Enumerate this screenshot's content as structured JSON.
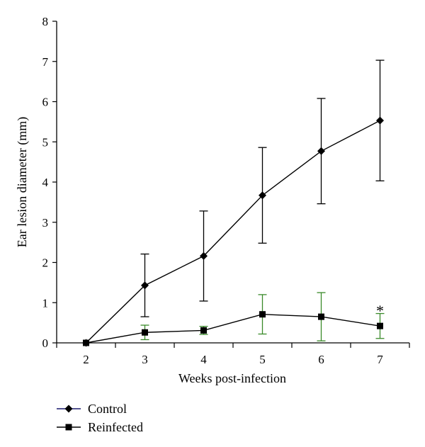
{
  "chart_data": {
    "type": "line",
    "xlabel": "Weeks post-infection",
    "ylabel": "Ear lesion diameter (mm)",
    "x": [
      2,
      3,
      4,
      5,
      6,
      7
    ],
    "xlim": [
      1.5,
      7.5
    ],
    "ylim": [
      0,
      8
    ],
    "xticks": [
      "2",
      "3",
      "4",
      "5",
      "6",
      "7"
    ],
    "yticks": [
      "0",
      "1",
      "2",
      "3",
      "4",
      "5",
      "6",
      "7",
      "8"
    ],
    "grid": false,
    "legend_position": "bottom-left",
    "series": [
      {
        "name": "Control",
        "marker": "diamond",
        "color": "#000000",
        "legend_line_color": "#1a1a6e",
        "error_color": "#000000",
        "values": [
          0,
          1.43,
          2.16,
          3.67,
          4.77,
          5.53
        ],
        "error": [
          0,
          0.78,
          1.12,
          1.19,
          1.31,
          1.5
        ]
      },
      {
        "name": "Reinfected",
        "marker": "square",
        "color": "#000000",
        "legend_line_color": "#000000",
        "error_color": "#3a8a2a",
        "values": [
          0,
          0.26,
          0.31,
          0.71,
          0.65,
          0.42
        ],
        "error": [
          0,
          0.18,
          0.1,
          0.49,
          0.6,
          0.31
        ]
      }
    ],
    "annotations": [
      {
        "text": "*",
        "x": 7,
        "y": 0.85
      }
    ]
  }
}
